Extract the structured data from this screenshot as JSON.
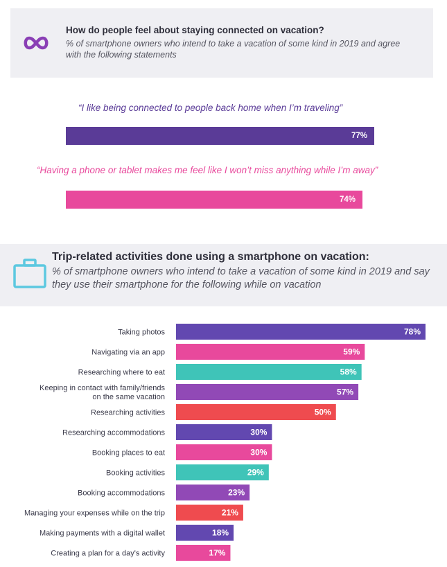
{
  "section1": {
    "icon": "infinity-links-icon",
    "title": "How do people feel about staying connected on vacation?",
    "subtitle": "% of smartphone owners who intend to take a vacation of some kind in 2019 and agree with the following statements",
    "statements": [
      {
        "text": "“I like being connected to people back home when I’m traveling”",
        "value": 77,
        "label": "77%",
        "color": "#5a3b97"
      },
      {
        "text": "“Having a phone or tablet makes me feel like I won’t miss anything while I’m away”",
        "value": 74,
        "label": "74%",
        "color": "#e8499c"
      }
    ]
  },
  "section2": {
    "icon": "suitcase-icon",
    "title": "Trip-related activities done using a smartphone on vacation:",
    "subtitle": "% of smartphone owners who intend to take a vacation of some kind in 2019 and say they use their smartphone for the following while on vacation"
  },
  "chart_data": {
    "type": "bar",
    "orientation": "horizontal",
    "categories": [
      "Taking photos",
      "Navigating via an app",
      "Researching where to eat",
      "Keeping in contact with family/friends\non the same vacation",
      "Researching activities",
      "Researching accommodations",
      "Booking places to eat",
      "Booking activities",
      "Booking accommodations",
      "Managing your expenses while on the trip",
      "Making payments with a digital wallet",
      "Creating a plan for a day's activity"
    ],
    "values": [
      78,
      59,
      58,
      57,
      50,
      30,
      30,
      29,
      23,
      21,
      18,
      17
    ],
    "labels": [
      "78%",
      "59%",
      "58%",
      "57%",
      "50%",
      "30%",
      "30%",
      "29%",
      "23%",
      "21%",
      "18%",
      "17%"
    ],
    "colors": [
      "#6248b0",
      "#e8499c",
      "#3fc4b8",
      "#9149b6",
      "#ef4b4f",
      "#6248b0",
      "#e8499c",
      "#3fc4b8",
      "#9149b6",
      "#ef4b4f",
      "#6248b0",
      "#e8499c"
    ],
    "xlim": [
      0,
      78
    ]
  }
}
